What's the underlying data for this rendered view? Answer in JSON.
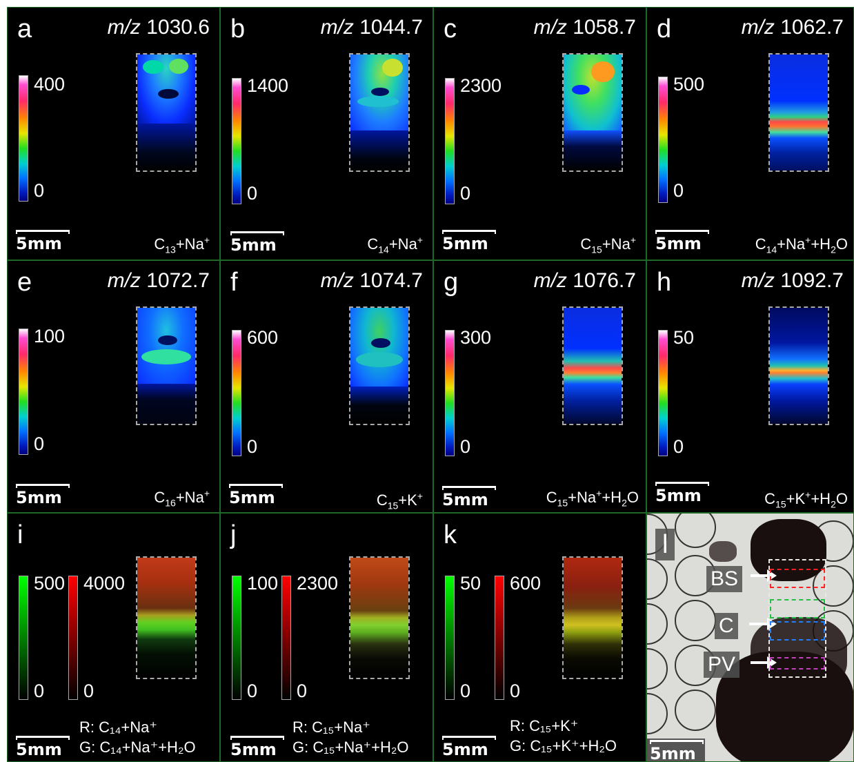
{
  "scale_label": "5mm",
  "ion_panels": [
    {
      "letter": "a",
      "mz_prefix": "m/z",
      "mz_value": "1030.6",
      "cmax": "400",
      "cmin": "0",
      "formula": [
        "C",
        "13",
        "+Na",
        "+",
        ""
      ]
    },
    {
      "letter": "b",
      "mz_prefix": "m/z",
      "mz_value": "1044.7",
      "cmax": "1400",
      "cmin": "0",
      "formula": [
        "C",
        "14",
        "+Na",
        "+",
        ""
      ]
    },
    {
      "letter": "c",
      "mz_prefix": "m/z",
      "mz_value": "1058.7",
      "cmax": "2300",
      "cmin": "0",
      "formula": [
        "C",
        "15",
        "+Na",
        "+",
        ""
      ]
    },
    {
      "letter": "d",
      "mz_prefix": "m/z",
      "mz_value": "1062.7",
      "cmax": "500",
      "cmin": "0",
      "formula": [
        "C",
        "14",
        "+Na",
        "+",
        "+H₂O"
      ]
    },
    {
      "letter": "e",
      "mz_prefix": "m/z",
      "mz_value": "1072.7",
      "cmax": "100",
      "cmin": "0",
      "formula": [
        "C",
        "16",
        "+Na",
        "+",
        ""
      ]
    },
    {
      "letter": "f",
      "mz_prefix": "m/z",
      "mz_value": "1074.7",
      "cmax": "600",
      "cmin": "0",
      "formula": [
        "C",
        "15",
        "+K",
        "+",
        ""
      ]
    },
    {
      "letter": "g",
      "mz_prefix": "m/z",
      "mz_value": "1076.7",
      "cmax": "300",
      "cmin": "0",
      "formula": [
        "C",
        "15",
        "+Na",
        "+",
        "+H₂O"
      ]
    },
    {
      "letter": "h",
      "mz_prefix": "m/z",
      "mz_value": "1092.7",
      "cmax": "50",
      "cmin": "0",
      "formula": [
        "C",
        "15",
        "+K",
        "+",
        "+H₂O"
      ]
    }
  ],
  "overlay_panels": [
    {
      "letter": "i",
      "green_max": "500",
      "red_max": "4000",
      "green_min": "0",
      "red_min": "0",
      "r_label": "R: C₁₄+Na⁺",
      "g_label": "G: C₁₄+Na⁺+H₂O"
    },
    {
      "letter": "j",
      "green_max": "100",
      "red_max": "2300",
      "green_min": "0",
      "red_min": "0",
      "r_label": "R: C₁₅+Na⁺",
      "g_label": "G: C₁₅+Na⁺+H₂O"
    },
    {
      "letter": "k",
      "green_max": "50",
      "red_max": "600",
      "green_min": "0",
      "red_min": "0",
      "r_label": "R: C₁₅+K⁺",
      "g_label": "G: C₁₅+K⁺+H₂O"
    }
  ],
  "photo_panel": {
    "letter": "l",
    "labels": [
      "BS",
      "C",
      "PV"
    ],
    "box_colors": {
      "outer": "#e8e8e8",
      "bs": "#ff2020",
      "green": "#20c040",
      "blue": "#2080ff",
      "pv": "#c040c0"
    }
  },
  "colors": {
    "background": "#000000",
    "panel_border": "#1d6a26",
    "text": "#ffffff"
  }
}
